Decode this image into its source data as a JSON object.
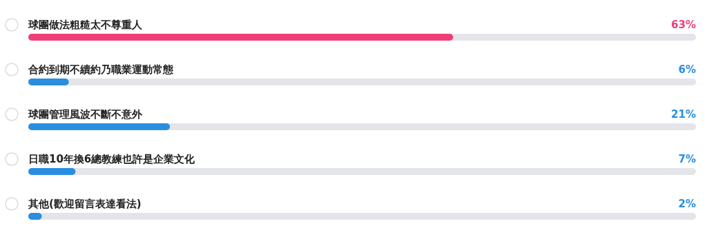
{
  "chart_data": {
    "type": "bar",
    "orientation": "horizontal",
    "categories": [
      "球團做法粗糙太不尊重人",
      "合約到期不續約乃職業運動常態",
      "球團管理風波不斷不意外",
      "日職10年換6總教練也許是企業文化",
      "其他(歡迎留言表達看法)"
    ],
    "values": [
      63,
      6,
      21,
      7,
      2
    ],
    "value_labels": [
      "63%",
      "6%",
      "21%",
      "7%",
      "2%"
    ],
    "colors": [
      "#ef3f78",
      "#2a8ee0",
      "#2a8ee0",
      "#2a8ee0",
      "#2a8ee0"
    ]
  }
}
